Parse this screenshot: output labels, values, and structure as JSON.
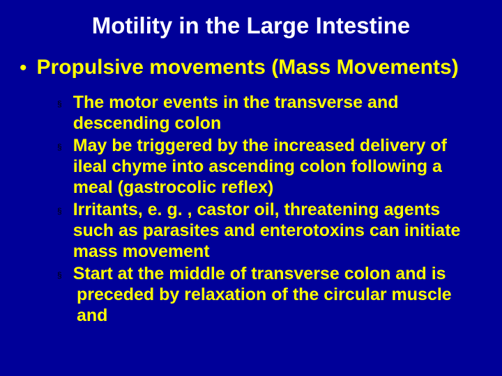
{
  "slide": {
    "background_color": "#000099",
    "text_color": "#ffff00",
    "title_color": "#ffffff",
    "sub_marker_color": "#000000",
    "title": "Motility in the Large Intestine",
    "title_fontsize": 33,
    "bullet_fontsize": 30,
    "sub_fontsize": 25,
    "bullet": {
      "marker": "•",
      "text": "Propulsive movements (Mass Movements)"
    },
    "subs": [
      {
        "marker": "§",
        "text": "The motor events in the transverse and descending colon"
      },
      {
        "marker": "§",
        "text": "May be triggered by the increased delivery of ileal chyme into ascending colon following a meal (gastrocolic reflex)"
      },
      {
        "marker": "§",
        "text": "Irritants, e. g. , castor oil, threatening agents such as parasites and enterotoxins can initiate mass movement"
      },
      {
        "marker": "§",
        "text": "Start at the middle of transverse colon and is"
      }
    ],
    "cutoff": "preceded by relaxation of the circular muscle and"
  }
}
